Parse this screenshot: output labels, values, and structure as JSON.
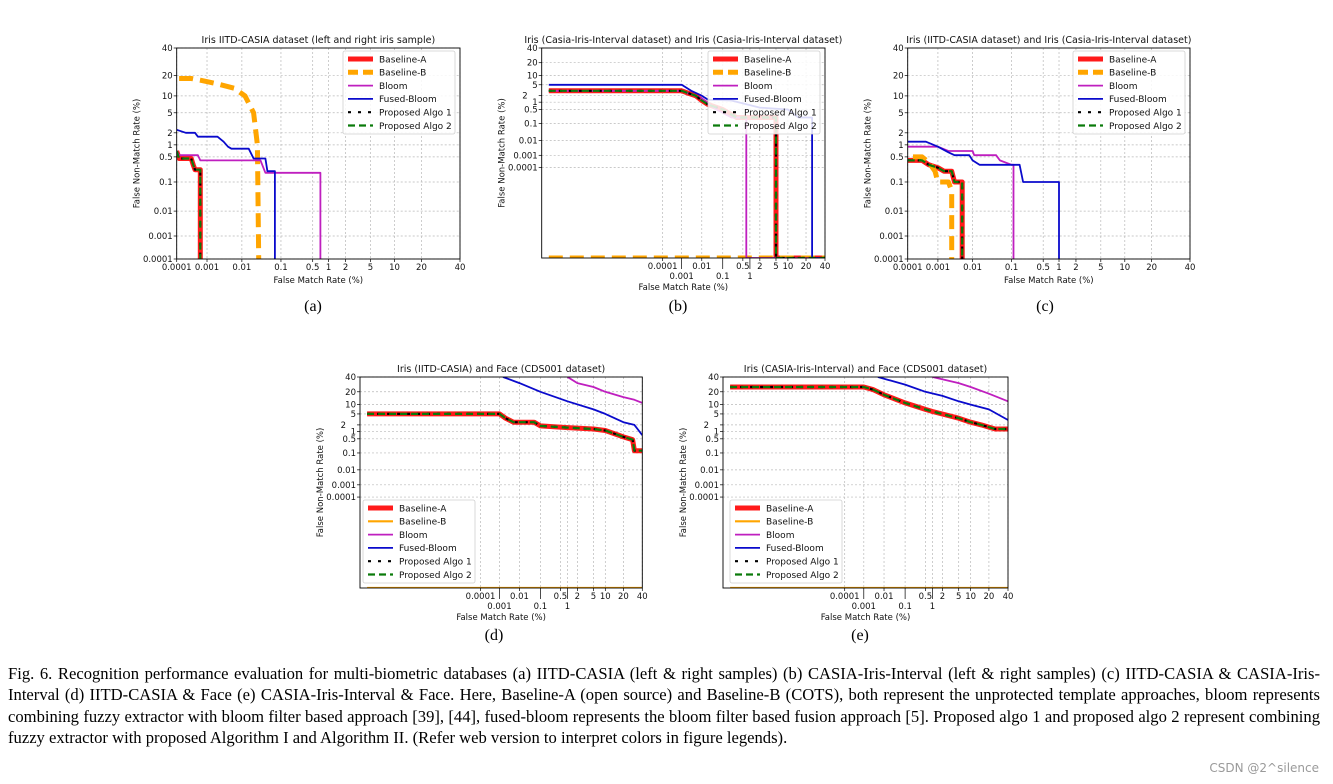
{
  "figure": {
    "caption": "Fig. 6.   Recognition performance evaluation for multi-biometric databases (a) IITD-CASIA (left & right samples) (b) CASIA-Iris-Interval (left & right samples) (c) IITD-CASIA & CASIA-Iris-Interval (d) IITD-CASIA & Face (e) CASIA-Iris-Interval & Face. Here, Baseline-A (open source) and Baseline-B (COTS), both represent the unprotected template approaches, bloom represents combining fuzzy extractor with bloom filter based approach [39], [44], fused-bloom represents the bloom filter based fusion approach [5]. Proposed algo 1 and proposed algo 2 represent combining fuzzy extractor with proposed Algorithm I and Algorithm II. (Refer web version to interpret colors in figure legends).",
    "watermark": "CSDN @2^silence",
    "sublabels": [
      "(a)",
      "(b)",
      "(c)",
      "(d)",
      "(e)"
    ]
  },
  "colors": {
    "Baseline-A": "#ff1a1a",
    "Baseline-B": "#ffa500",
    "Bloom": "#bf1fbf",
    "Fused-Bloom": "#0a0acc",
    "Proposed Algo 1": "#000000",
    "Proposed Algo 2": "#0a7a0a"
  },
  "chart_data": [
    {
      "type": "line",
      "title": "Iris IITD-CASIA dataset (left and right iris sample)",
      "xlabel": "False Match Rate (%)",
      "ylabel": "False Non-Match Rate (%)",
      "x_scale": "log",
      "y_scale": "log",
      "xlim": [
        0.0001,
        40
      ],
      "ylim": [
        0.0001,
        40
      ],
      "x_ticks": [
        "0.0001",
        "0.001",
        "0.01",
        "0.1",
        "0.5",
        "1",
        "2",
        "5",
        "10",
        "20",
        "40"
      ],
      "y_ticks": [
        "40",
        "20",
        "10",
        "5",
        "2",
        "1",
        "0.5",
        "0.1",
        "0.01",
        "0.001",
        "0.0001"
      ],
      "grid": true,
      "legend": "top-right",
      "series": [
        {
          "name": "Baseline-A",
          "x": [
            0.0001,
            0.00012,
            0.0003,
            0.00035,
            0.0004,
            0.0006,
            0.0006
          ],
          "y": [
            0.7,
            0.45,
            0.45,
            0.3,
            0.22,
            0.22,
            0.0001
          ]
        },
        {
          "name": "Baseline-B",
          "x": [
            0.00012,
            0.0003,
            0.0006,
            0.002,
            0.006,
            0.012,
            0.02,
            0.025,
            0.027
          ],
          "y": [
            18,
            18,
            17,
            15,
            13,
            10,
            5,
            1,
            0.0001
          ]
        },
        {
          "name": "Bloom",
          "x": [
            0.0001,
            0.00012,
            0.0005,
            0.0006,
            0.03,
            0.04,
            0.7,
            0.7
          ],
          "y": [
            0.7,
            0.55,
            0.55,
            0.4,
            0.4,
            0.18,
            0.18,
            0.0001
          ]
        },
        {
          "name": "Fused-Bloom",
          "x": [
            0.0001,
            0.0002,
            0.0004,
            0.0005,
            0.002,
            0.003,
            0.004,
            0.005,
            0.015,
            0.02,
            0.04,
            0.045,
            0.07,
            0.07
          ],
          "y": [
            2.3,
            2,
            2,
            1.6,
            1.6,
            1.2,
            0.9,
            0.8,
            0.8,
            0.45,
            0.45,
            0.2,
            0.2,
            0.0001
          ]
        },
        {
          "name": "Proposed Algo 1",
          "x": [
            0.0001,
            0.00012,
            0.0003,
            0.00035,
            0.0004,
            0.0006,
            0.0006
          ],
          "y": [
            0.7,
            0.45,
            0.45,
            0.3,
            0.22,
            0.22,
            0.0001
          ]
        },
        {
          "name": "Proposed Algo 2",
          "x": [
            0.0001,
            0.00012,
            0.0003,
            0.00035,
            0.0004,
            0.0006,
            0.0006
          ],
          "y": [
            0.7,
            0.45,
            0.45,
            0.3,
            0.22,
            0.22,
            0.0001
          ]
        }
      ]
    },
    {
      "type": "line",
      "title": "Iris (Casia-Iris-Interval dataset) and Iris (Casia-Iris-Interval dataset)",
      "xlabel": "False Match Rate (%)",
      "ylabel": "False Non-Match Rate (%)",
      "x_scale": "log",
      "y_scale": "log",
      "xlim": [
        1e-10,
        40
      ],
      "ylim": [
        1e-12,
        40
      ],
      "x_ticks": [
        "0.0001",
        "0.001",
        "0.01",
        "0.1",
        "0.5",
        "1",
        "2",
        "5",
        "10",
        "20",
        "40"
      ],
      "y_ticks": [
        "40",
        "20",
        "10",
        "5",
        "2",
        "1",
        "0.5",
        "0.1",
        "0.01",
        "0.001",
        "0.0001"
      ],
      "grid": true,
      "legend": "top-right",
      "series": [
        {
          "name": "Baseline-A",
          "x": [
            1e-10,
            0.001,
            0.002,
            0.005,
            0.01,
            0.02,
            0.1,
            0.3,
            5,
            5,
            40
          ],
          "y": [
            3,
            3,
            2.5,
            2,
            1.2,
            0.8,
            0.5,
            0.2,
            0.2,
            1e-12,
            1e-12
          ]
        },
        {
          "name": "Baseline-B",
          "x": [
            1e-10,
            40
          ],
          "y": [
            1e-12,
            1e-12
          ]
        },
        {
          "name": "Bloom",
          "x": [
            1e-10,
            0.001,
            0.01,
            0.05,
            0.2,
            0.7,
            0.7,
            40
          ],
          "y": [
            3,
            3,
            1.5,
            0.5,
            0.2,
            0.2,
            1e-12,
            1e-12
          ]
        },
        {
          "name": "Fused-Bloom",
          "x": [
            1e-10,
            0.001,
            0.003,
            0.01,
            0.02,
            0.2,
            2,
            10,
            15,
            25,
            25,
            40
          ],
          "y": [
            5,
            5,
            3,
            2,
            1.3,
            1.2,
            0.6,
            0.5,
            0.2,
            0.2,
            1e-12,
            1e-12
          ]
        },
        {
          "name": "Proposed Algo 1",
          "x": [
            1e-10,
            0.001,
            0.002,
            0.005,
            0.01,
            0.02,
            0.1,
            0.3,
            5,
            5,
            40
          ],
          "y": [
            3,
            3,
            2.5,
            2,
            1.2,
            0.8,
            0.5,
            0.2,
            0.2,
            1e-12,
            1e-12
          ]
        },
        {
          "name": "Proposed Algo 2",
          "x": [
            1e-10,
            0.001,
            0.002,
            0.005,
            0.01,
            0.02,
            0.1,
            0.3,
            5,
            5,
            40
          ],
          "y": [
            3,
            3,
            2.5,
            2,
            1.2,
            0.8,
            0.5,
            0.2,
            0.2,
            1e-12,
            1e-12
          ]
        }
      ]
    },
    {
      "type": "line",
      "title": "Iris (IITD-CASIA dataset) and Iris (Casia-Iris-Interval dataset)",
      "xlabel": "False Match Rate (%)",
      "ylabel": "False Non-Match Rate (%)",
      "x_scale": "log",
      "y_scale": "log",
      "xlim": [
        0.0001,
        40
      ],
      "ylim": [
        0.0001,
        40
      ],
      "x_ticks": [
        "0.0001",
        "0.001",
        "0.01",
        "0.1",
        "0.5",
        "1",
        "2",
        "5",
        "10",
        "20",
        "40"
      ],
      "y_ticks": [
        "40",
        "20",
        "10",
        "5",
        "2",
        "1",
        "0.5",
        "0.1",
        "0.01",
        "0.001",
        "0.0001"
      ],
      "grid": true,
      "legend": "top-right",
      "series": [
        {
          "name": "Baseline-A",
          "x": [
            0.0001,
            0.0003,
            0.0005,
            0.001,
            0.0015,
            0.0025,
            0.003,
            0.005,
            0.005
          ],
          "y": [
            0.4,
            0.4,
            0.3,
            0.25,
            0.2,
            0.2,
            0.1,
            0.1,
            0.0001
          ]
        },
        {
          "name": "Baseline-B",
          "x": [
            0.00015,
            0.0003,
            0.0005,
            0.0008,
            0.001,
            0.002,
            0.0025,
            0.0025
          ],
          "y": [
            0.5,
            0.5,
            0.35,
            0.2,
            0.1,
            0.1,
            0.05,
            0.0001
          ]
        },
        {
          "name": "Bloom",
          "x": [
            0.0001,
            0.001,
            0.002,
            0.01,
            0.011,
            0.04,
            0.05,
            0.1,
            0.11,
            0.11
          ],
          "y": [
            0.9,
            0.9,
            0.7,
            0.7,
            0.55,
            0.55,
            0.4,
            0.3,
            0.3,
            0.0001
          ]
        },
        {
          "name": "Fused-Bloom",
          "x": [
            0.0001,
            0.0004,
            0.001,
            0.002,
            0.003,
            0.008,
            0.01,
            0.015,
            0.15,
            0.18,
            1,
            1
          ],
          "y": [
            1.2,
            1.2,
            0.9,
            0.65,
            0.55,
            0.55,
            0.4,
            0.3,
            0.3,
            0.1,
            0.1,
            0.0001
          ]
        },
        {
          "name": "Proposed Algo 1",
          "x": [
            0.0001,
            0.0003,
            0.0005,
            0.001,
            0.0015,
            0.0025,
            0.003,
            0.005,
            0.005
          ],
          "y": [
            0.4,
            0.4,
            0.3,
            0.25,
            0.2,
            0.2,
            0.1,
            0.1,
            0.0001
          ]
        },
        {
          "name": "Proposed Algo 2",
          "x": [
            0.0001,
            0.0003,
            0.0005,
            0.001,
            0.0015,
            0.0025,
            0.003,
            0.005,
            0.005
          ],
          "y": [
            0.4,
            0.4,
            0.3,
            0.25,
            0.2,
            0.2,
            0.1,
            0.1,
            0.0001
          ]
        }
      ]
    },
    {
      "type": "line",
      "title": "Iris (IITD-CASIA) and Face (CDS001 dataset)",
      "xlabel": "False Match Rate (%)",
      "ylabel": "False Non-Match Rate (%)",
      "x_scale": "log",
      "y_scale": "log",
      "xlim": [
        1e-10,
        40
      ],
      "ylim": [
        1e-12,
        40
      ],
      "x_ticks": [
        "0.0001",
        "0.001",
        "0.01",
        "0.1",
        "0.5",
        "1",
        "2",
        "5",
        "10",
        "20",
        "40"
      ],
      "y_ticks": [
        "40",
        "20",
        "10",
        "5",
        "2",
        "1",
        "0.5",
        "0.1",
        "0.01",
        "0.001",
        "0.0001"
      ],
      "grid": true,
      "legend": "lower-left",
      "series": [
        {
          "name": "Baseline-A",
          "x": [
            1e-10,
            0.001,
            0.002,
            0.005,
            0.05,
            0.1,
            1,
            5,
            10,
            20,
            28,
            30,
            40
          ],
          "y": [
            5,
            5,
            3.5,
            2.5,
            2.5,
            1.8,
            1.5,
            1.3,
            1.1,
            0.6,
            0.45,
            0.13,
            0.13
          ]
        },
        {
          "name": "Baseline-B",
          "x": [
            1e-10,
            40
          ],
          "y": [
            1e-12,
            1e-12
          ]
        },
        {
          "name": "Bloom",
          "x": [
            1,
            2,
            5,
            10,
            20,
            30,
            40
          ],
          "y": [
            40,
            30,
            25,
            20,
            15,
            13,
            11
          ]
        },
        {
          "name": "Fused-Bloom",
          "x": [
            0.0015,
            0.01,
            0.1,
            1,
            5,
            10,
            20,
            30,
            40
          ],
          "y": [
            40,
            30,
            20,
            12,
            7,
            5,
            2.5,
            2,
            0.7
          ]
        },
        {
          "name": "Proposed Algo 1",
          "x": [
            1e-10,
            0.001,
            0.002,
            0.005,
            0.05,
            0.1,
            1,
            5,
            10,
            20,
            28,
            30,
            40
          ],
          "y": [
            5,
            5,
            3.5,
            2.5,
            2.5,
            1.8,
            1.5,
            1.3,
            1.1,
            0.6,
            0.45,
            0.13,
            0.13
          ]
        },
        {
          "name": "Proposed Algo 2",
          "x": [
            1e-10,
            0.001,
            0.002,
            0.005,
            0.05,
            0.1,
            1,
            5,
            10,
            20,
            28,
            30,
            40
          ],
          "y": [
            5,
            5,
            3.5,
            2.5,
            2.5,
            1.8,
            1.5,
            1.3,
            1.1,
            0.6,
            0.45,
            0.13,
            0.13
          ]
        }
      ]
    },
    {
      "type": "line",
      "title": "Iris (CASIA-Iris-Interval) and Face (CDS001 dataset)",
      "xlabel": "False Match Rate (%)",
      "ylabel": "False Non-Match Rate (%)",
      "x_scale": "log",
      "y_scale": "log",
      "xlim": [
        1e-10,
        40
      ],
      "ylim": [
        1e-12,
        40
      ],
      "x_ticks": [
        "0.0001",
        "0.001",
        "0.01",
        "0.1",
        "0.5",
        "1",
        "2",
        "5",
        "10",
        "20",
        "40"
      ],
      "y_ticks": [
        "40",
        "20",
        "10",
        "5",
        "2",
        "1",
        "0.5",
        "0.1",
        "0.01",
        "0.001",
        "0.0001"
      ],
      "grid": true,
      "legend": "lower-left",
      "series": [
        {
          "name": "Baseline-A",
          "x": [
            1e-10,
            0.001,
            0.003,
            0.01,
            0.1,
            0.5,
            1,
            5,
            10,
            15,
            25,
            40
          ],
          "y": [
            25,
            25,
            22,
            17,
            11,
            7,
            6,
            3.5,
            2.5,
            2,
            1.3,
            1.3
          ]
        },
        {
          "name": "Baseline-B",
          "x": [
            1e-10,
            40
          ],
          "y": [
            1e-12,
            1e-12
          ]
        },
        {
          "name": "Bloom",
          "x": [
            1,
            5,
            10,
            20,
            40
          ],
          "y": [
            40,
            30,
            25,
            18,
            12
          ]
        },
        {
          "name": "Fused-Bloom",
          "x": [
            0.005,
            0.1,
            0.5,
            2,
            5,
            10,
            20,
            40
          ],
          "y": [
            40,
            28,
            20,
            16,
            12,
            10,
            7,
            3
          ]
        },
        {
          "name": "Proposed Algo 1",
          "x": [
            1e-10,
            0.001,
            0.003,
            0.01,
            0.1,
            0.5,
            1,
            5,
            10,
            15,
            25,
            40
          ],
          "y": [
            25,
            25,
            22,
            17,
            11,
            7,
            6,
            3.5,
            2.5,
            2,
            1.3,
            1.3
          ]
        },
        {
          "name": "Proposed Algo 2",
          "x": [
            1e-10,
            0.001,
            0.003,
            0.01,
            0.1,
            0.5,
            1,
            5,
            10,
            15,
            25,
            40
          ],
          "y": [
            25,
            25,
            22,
            17,
            11,
            7,
            6,
            3.5,
            2.5,
            2,
            1.3,
            1.3
          ]
        }
      ]
    }
  ]
}
